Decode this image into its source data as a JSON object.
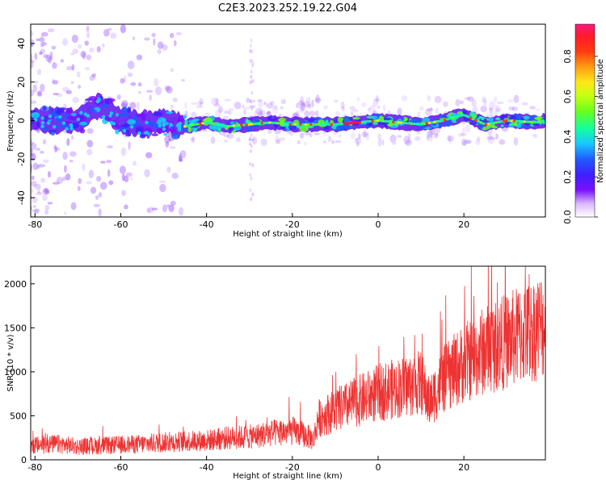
{
  "title": "C2E3.2023.252.19.22.G04",
  "chart_data": [
    {
      "type": "heatmap",
      "xlabel": "Height of straight line (km)",
      "ylabel": "Frequency (Hz)",
      "xlim": [
        -81,
        39
      ],
      "ylim": [
        -50,
        50
      ],
      "x_ticks": [
        "-80",
        "-60",
        "-40",
        "-20",
        "0",
        "20"
      ],
      "y_ticks": [
        "-40",
        "-20",
        "0",
        "20",
        "40"
      ],
      "colorbar": {
        "label": "Normalized spectral amplitude",
        "range": [
          0,
          0.96
        ],
        "ticks": [
          "0.0",
          "0.2",
          "0.4",
          "0.6",
          "0.8"
        ],
        "colormap": "rainbow (white-violet-blue-cyan-green-yellow-orange-red-magenta)"
      },
      "band": {
        "center_frequency_hz": 0,
        "description": "Strong narrow band near 0 Hz across all heights; broader, noisier spread at low heights (-80 to -50 km); small positive bump near -65 km (~8 Hz) and near 20 km (~3 Hz)",
        "center_offsets": [
          {
            "x": -80,
            "y": 1
          },
          {
            "x": -75,
            "y": 0
          },
          {
            "x": -70,
            "y": 0
          },
          {
            "x": -65,
            "y": 8
          },
          {
            "x": -60,
            "y": 0
          },
          {
            "x": -55,
            "y": -2
          },
          {
            "x": -50,
            "y": 0
          },
          {
            "x": -45,
            "y": -3
          },
          {
            "x": -40,
            "y": -1
          },
          {
            "x": -35,
            "y": -3
          },
          {
            "x": -30,
            "y": -2
          },
          {
            "x": -25,
            "y": -1
          },
          {
            "x": -20,
            "y": -2
          },
          {
            "x": -10,
            "y": -2
          },
          {
            "x": 0,
            "y": 0
          },
          {
            "x": 10,
            "y": -2
          },
          {
            "x": 15,
            "y": 0
          },
          {
            "x": 20,
            "y": 3
          },
          {
            "x": 25,
            "y": -2
          },
          {
            "x": 30,
            "y": 0
          },
          {
            "x": 38,
            "y": -1
          }
        ]
      },
      "grid": false
    },
    {
      "type": "line",
      "xlabel": "Height of straight line (km)",
      "ylabel": "SNR (10 * v/v)",
      "xlim": [
        -81,
        39
      ],
      "ylim": [
        0,
        2200
      ],
      "x_ticks": [
        "-80",
        "-60",
        "-40",
        "-20",
        "0",
        "20"
      ],
      "y_ticks": [
        "0",
        "500",
        "1000",
        "1500",
        "2000"
      ],
      "color": "#ee3333",
      "grid": false,
      "series": [
        {
          "x": [
            -81,
            -75,
            -70,
            -65,
            -60,
            -55,
            -50,
            -45,
            -40,
            -35,
            -30,
            -25,
            -20,
            -17,
            -15,
            -14,
            -10,
            -5,
            0,
            5,
            10,
            12,
            15,
            20,
            22,
            25,
            30,
            35,
            39
          ],
          "y": [
            160,
            180,
            150,
            160,
            170,
            180,
            200,
            210,
            220,
            250,
            260,
            300,
            330,
            280,
            230,
            470,
            560,
            660,
            760,
            820,
            880,
            650,
            900,
            1100,
            1150,
            1250,
            1350,
            1450,
            1550
          ]
        }
      ]
    }
  ]
}
